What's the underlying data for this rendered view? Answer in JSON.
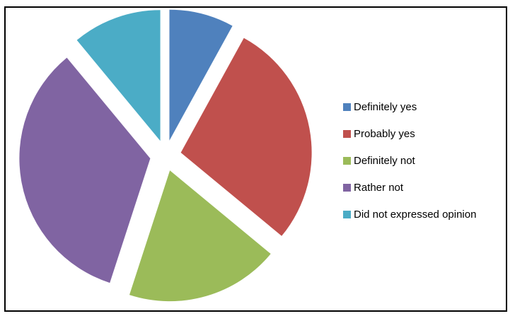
{
  "chart_data": {
    "type": "pie",
    "exploded": true,
    "categories": [
      "Definitely yes",
      "Probably yes",
      "Definitely not",
      "Rather not",
      "Did not expressed opinion"
    ],
    "values": [
      8,
      28,
      19,
      34,
      11
    ],
    "colors": [
      "#4F81BD",
      "#C0504D",
      "#9BBB59",
      "#8064A2",
      "#4BACC6"
    ],
    "legend_position": "right"
  }
}
